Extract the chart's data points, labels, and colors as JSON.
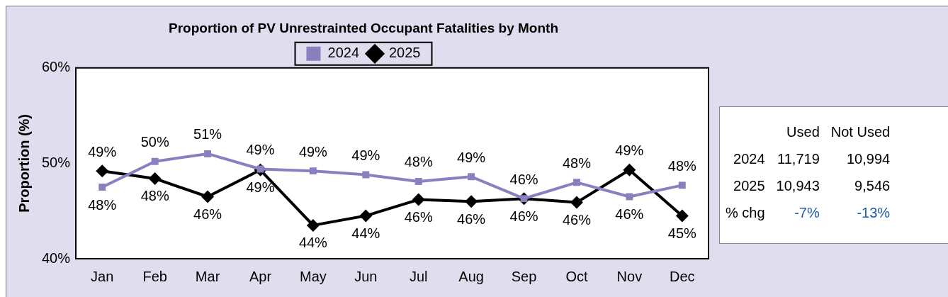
{
  "chart_data": [
    {
      "type": "line",
      "title": "Proportion of PV Unrestrainted Occupant Fatalities by Month",
      "ylabel": "Proportion (%)",
      "categories": [
        "Jan",
        "Feb",
        "Mar",
        "Apr",
        "May",
        "Jun",
        "Jul",
        "Aug",
        "Sep",
        "Oct",
        "Nov",
        "Dec"
      ],
      "series": [
        {
          "name": "2024",
          "color": "#8a80c0",
          "marker": "square",
          "values": [
            47.5,
            50.2,
            51.0,
            49.4,
            49.2,
            48.8,
            48.1,
            48.6,
            46.3,
            48.0,
            46.5,
            47.7
          ],
          "value_labels": [
            "48%",
            "50%",
            "51%",
            "49%",
            "49%",
            "49%",
            "48%",
            "49%",
            "46%",
            "48%",
            "46%",
            "48%"
          ]
        },
        {
          "name": "2025",
          "color": "#000000",
          "marker": "diamond",
          "values": [
            49.2,
            48.4,
            46.5,
            49.3,
            43.5,
            44.5,
            46.2,
            46.0,
            46.3,
            45.9,
            49.3,
            44.5
          ],
          "value_labels": [
            "49%",
            "48%",
            "46%",
            "49%",
            "44%",
            "44%",
            "46%",
            "46%",
            "46%",
            "46%",
            "49%",
            "45%"
          ]
        }
      ],
      "ylim": [
        40,
        60
      ],
      "yticks": [
        {
          "value": 40,
          "label": "40%"
        },
        {
          "value": 50,
          "label": "50%"
        },
        {
          "value": 60,
          "label": "60%"
        }
      ],
      "grid": false,
      "legend": "top",
      "line_style": "solid"
    },
    {
      "type": "other",
      "categories": [
        "Used",
        "Not Used"
      ],
      "y_categories": [
        "2024",
        "2025",
        "% chg"
      ],
      "cell_labels": [
        [
          "11,719",
          "10,994"
        ],
        [
          "10,943",
          "9,546"
        ],
        [
          "-7%",
          "-13%"
        ]
      ]
    }
  ]
}
